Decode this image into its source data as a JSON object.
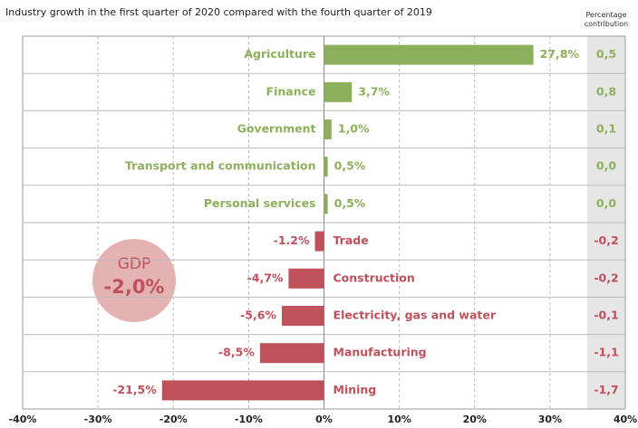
{
  "chart_data": {
    "type": "bar",
    "orientation": "horizontal",
    "title": "Industry growth in the first quarter of 2020 compared with the fourth quarter of 2019",
    "categories": [
      "Agriculture",
      "Finance",
      "Government",
      "Transport and communication",
      "Personal services",
      "Trade",
      "Construction",
      "Electricity, gas and water",
      "Manufacturing",
      "Mining"
    ],
    "values": [
      27.8,
      3.7,
      1.0,
      0.5,
      0.5,
      -1.2,
      -4.7,
      -5.6,
      -8.5,
      -21.5
    ],
    "value_labels": [
      "27,8%",
      "3,7%",
      "1,0%",
      "0,5%",
      "0,5%",
      "-1.2%",
      "-4,7%",
      "-5,6%",
      "-8,5%",
      "-21,5%"
    ],
    "positive_color": "#8cb05c",
    "negative_color": "#c0505a",
    "contribution": {
      "title": "Percentage contribution",
      "values": [
        0.5,
        0.8,
        0.1,
        0.0,
        0.0,
        -0.2,
        -0.2,
        -0.1,
        -1.1,
        -1.7
      ],
      "value_labels": [
        "0,5",
        "0,8",
        "0,1",
        "0,0",
        "0,0",
        "-0,2",
        "-0,2",
        "-0,1",
        "-1,1",
        "-1,7"
      ]
    },
    "annotation": {
      "label": "GDP",
      "value": -2.0,
      "value_label": "-2,0%"
    },
    "xlim": [
      -40,
      40
    ],
    "xticks": [
      {
        "value": -40,
        "label": "-40%"
      },
      {
        "value": -30,
        "label": "-30%"
      },
      {
        "value": -20,
        "label": "-20%"
      },
      {
        "value": -10,
        "label": "-10%"
      },
      {
        "value": 0,
        "label": "0%"
      },
      {
        "value": 10,
        "label": "10%"
      },
      {
        "value": 20,
        "label": "20%"
      },
      {
        "value": 30,
        "label": "30%"
      },
      {
        "value": 40,
        "label": "40%"
      }
    ],
    "grid": true
  }
}
